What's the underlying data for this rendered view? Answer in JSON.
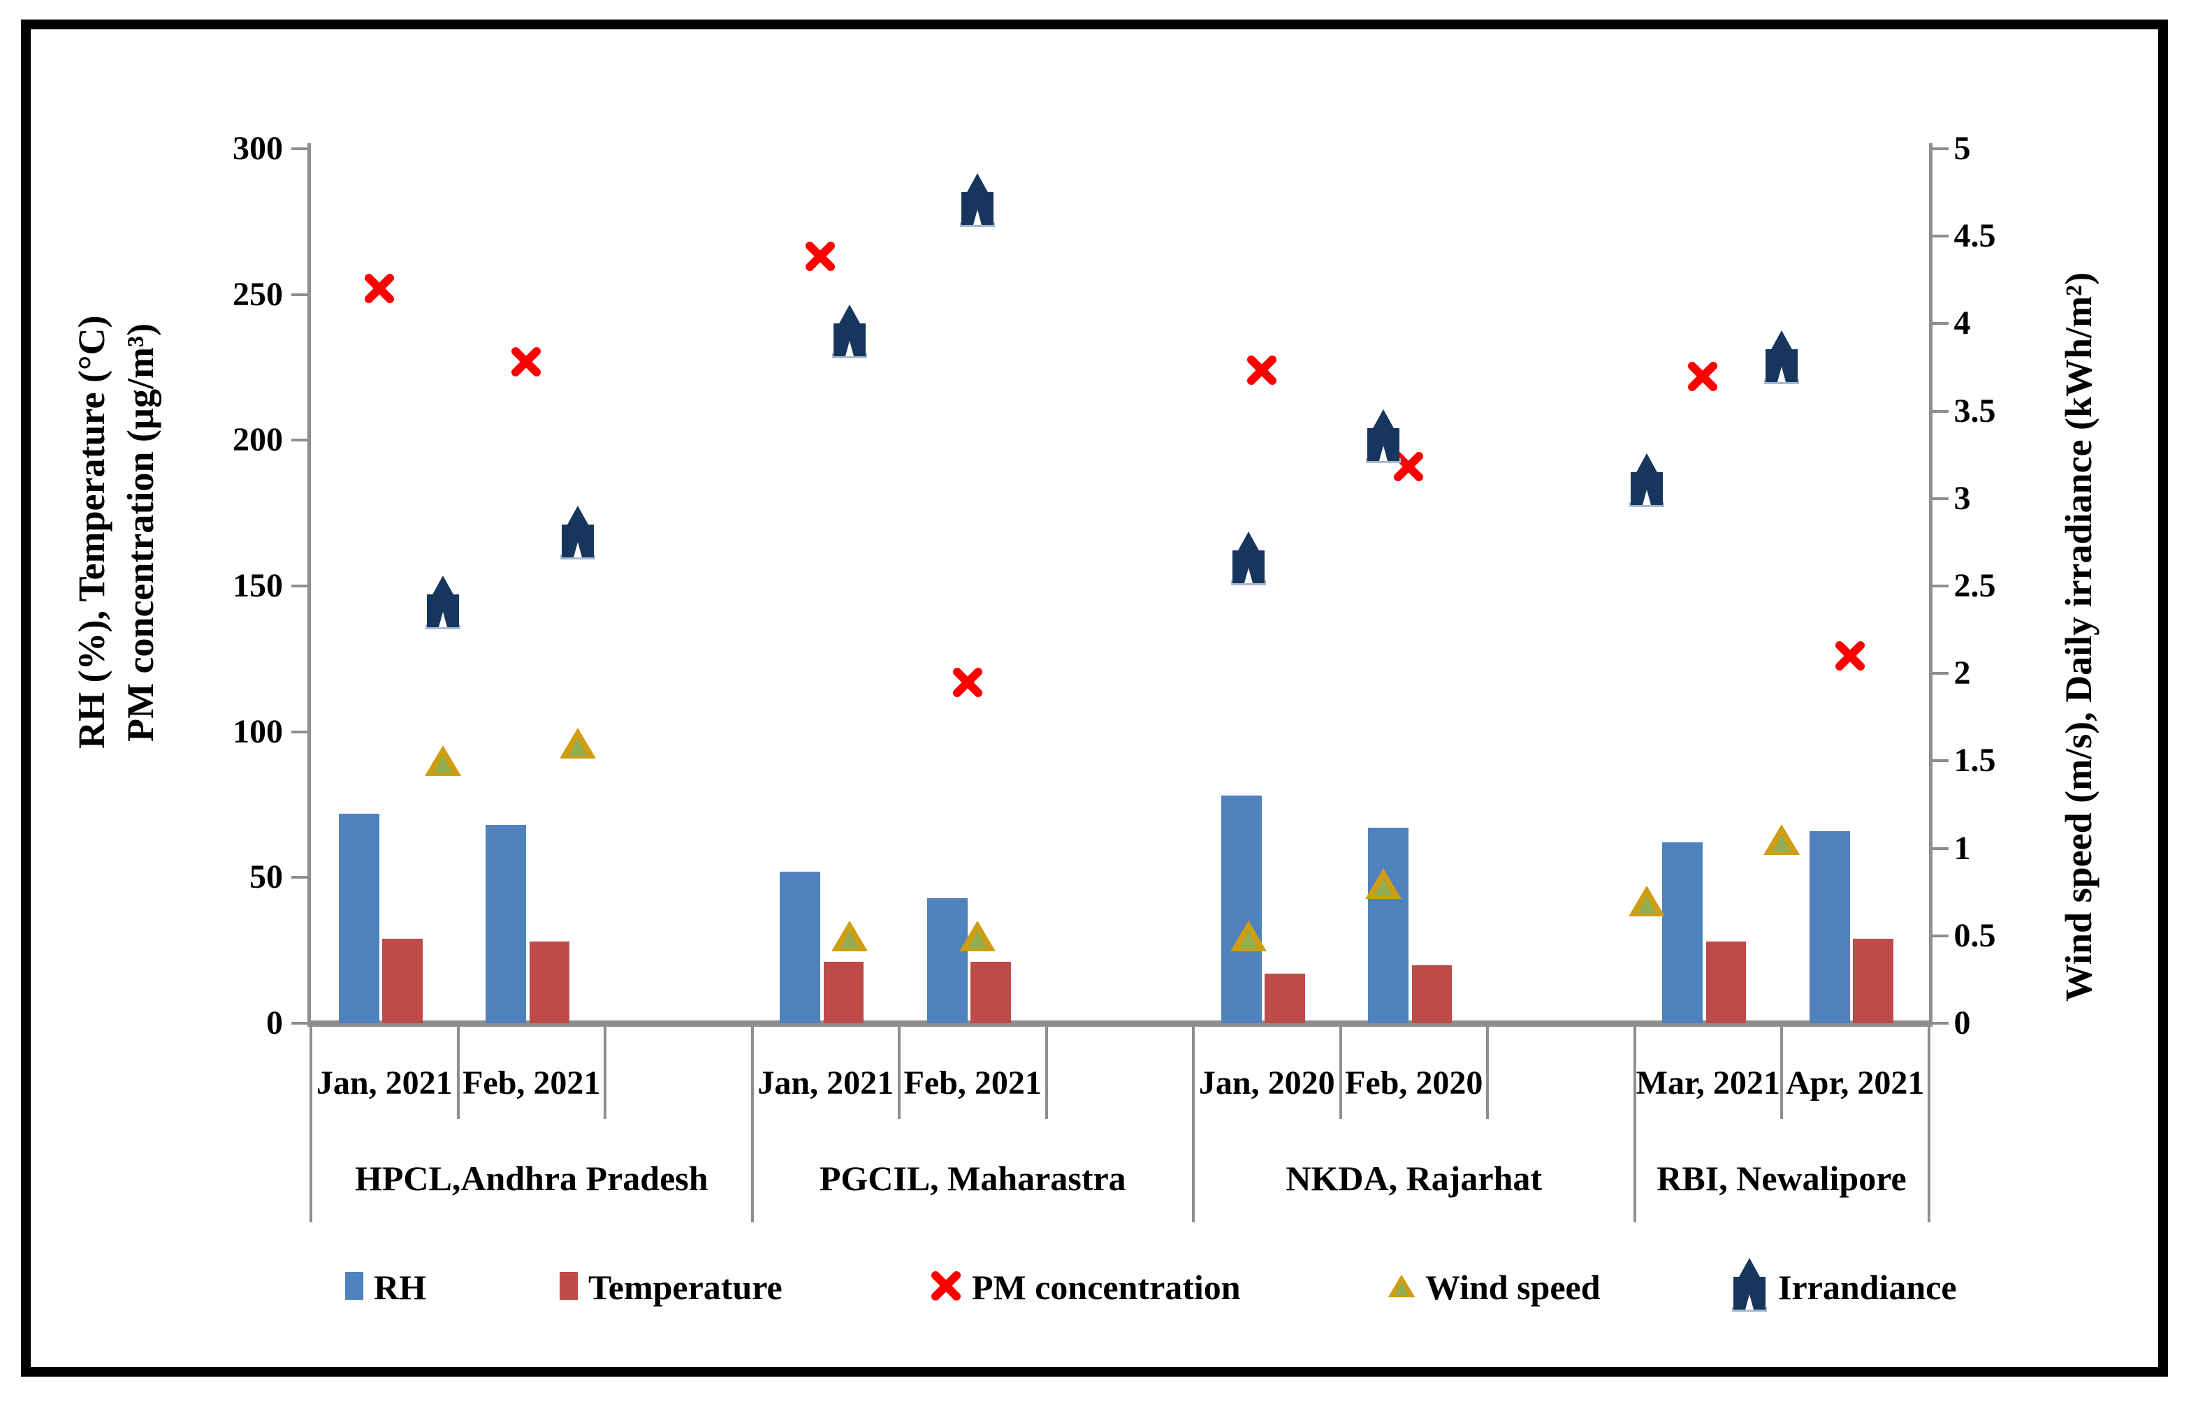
{
  "chart_data": {
    "type": "bar",
    "subtype": "combo-bar-scatter-dual-axis",
    "title": "",
    "left_axis": {
      "title_line1": "RH (%), Temperature (°C)",
      "title_line2": "PM concentration (µg/m³)",
      "min": 0,
      "max": 300,
      "step": 50,
      "ticks": [
        "0",
        "50",
        "100",
        "150",
        "200",
        "250",
        "300"
      ]
    },
    "right_axis": {
      "title": "Wind speed (m/s), Daily irradiance (kWh/m²)",
      "min": 0,
      "max": 5,
      "step": 0.5,
      "ticks": [
        "0",
        "0.5",
        "1",
        "1.5",
        "2",
        "2.5",
        "3",
        "3.5",
        "4",
        "4.5",
        "5"
      ]
    },
    "groups": [
      {
        "label": "HPCL,Andhra Pradesh",
        "months": [
          "Jan, 2021",
          "Feb, 2021"
        ]
      },
      {
        "label": "PGCIL, Maharastra",
        "months": [
          "Jan, 2021",
          "Feb, 2021"
        ]
      },
      {
        "label": "NKDA, Rajarhat",
        "months": [
          "Jan, 2020",
          "Feb, 2020"
        ]
      },
      {
        "label": "RBI, Newalipore",
        "months": [
          "Mar, 2021",
          "Apr, 2021"
        ]
      }
    ],
    "series": [
      {
        "name": "RH",
        "type": "bar",
        "axis": "left",
        "color": "#4F81BD",
        "values": [
          72,
          68,
          52,
          43,
          78,
          67,
          62,
          66
        ]
      },
      {
        "name": "Temperature",
        "type": "bar",
        "axis": "left",
        "color": "#BE4B48",
        "values": [
          29,
          28,
          21,
          21,
          17,
          20,
          28,
          29
        ]
      },
      {
        "name": "PM concentration",
        "type": "scatter-x",
        "axis": "left",
        "color": "#FF0000",
        "values": [
          252,
          227,
          263,
          117,
          224,
          191,
          222,
          126
        ]
      },
      {
        "name": "Wind speed",
        "type": "scatter-triangle",
        "axis": "right",
        "color": "#CE9D12",
        "values": [
          1.5,
          1.6,
          0.5,
          0.5,
          0.5,
          0.8,
          0.7,
          1.05
        ]
      },
      {
        "name": "Irrandiance",
        "type": "scatter-cluster",
        "axis": "right",
        "color": "#17365D",
        "values": [
          2.4,
          2.8,
          3.95,
          4.7,
          2.65,
          3.35,
          3.1,
          3.8
        ]
      }
    ],
    "legend": [
      "RH",
      "Temperature",
      "PM concentration",
      "Wind speed",
      "Irrandiance"
    ],
    "legend_position": "bottom",
    "grid": "off"
  }
}
